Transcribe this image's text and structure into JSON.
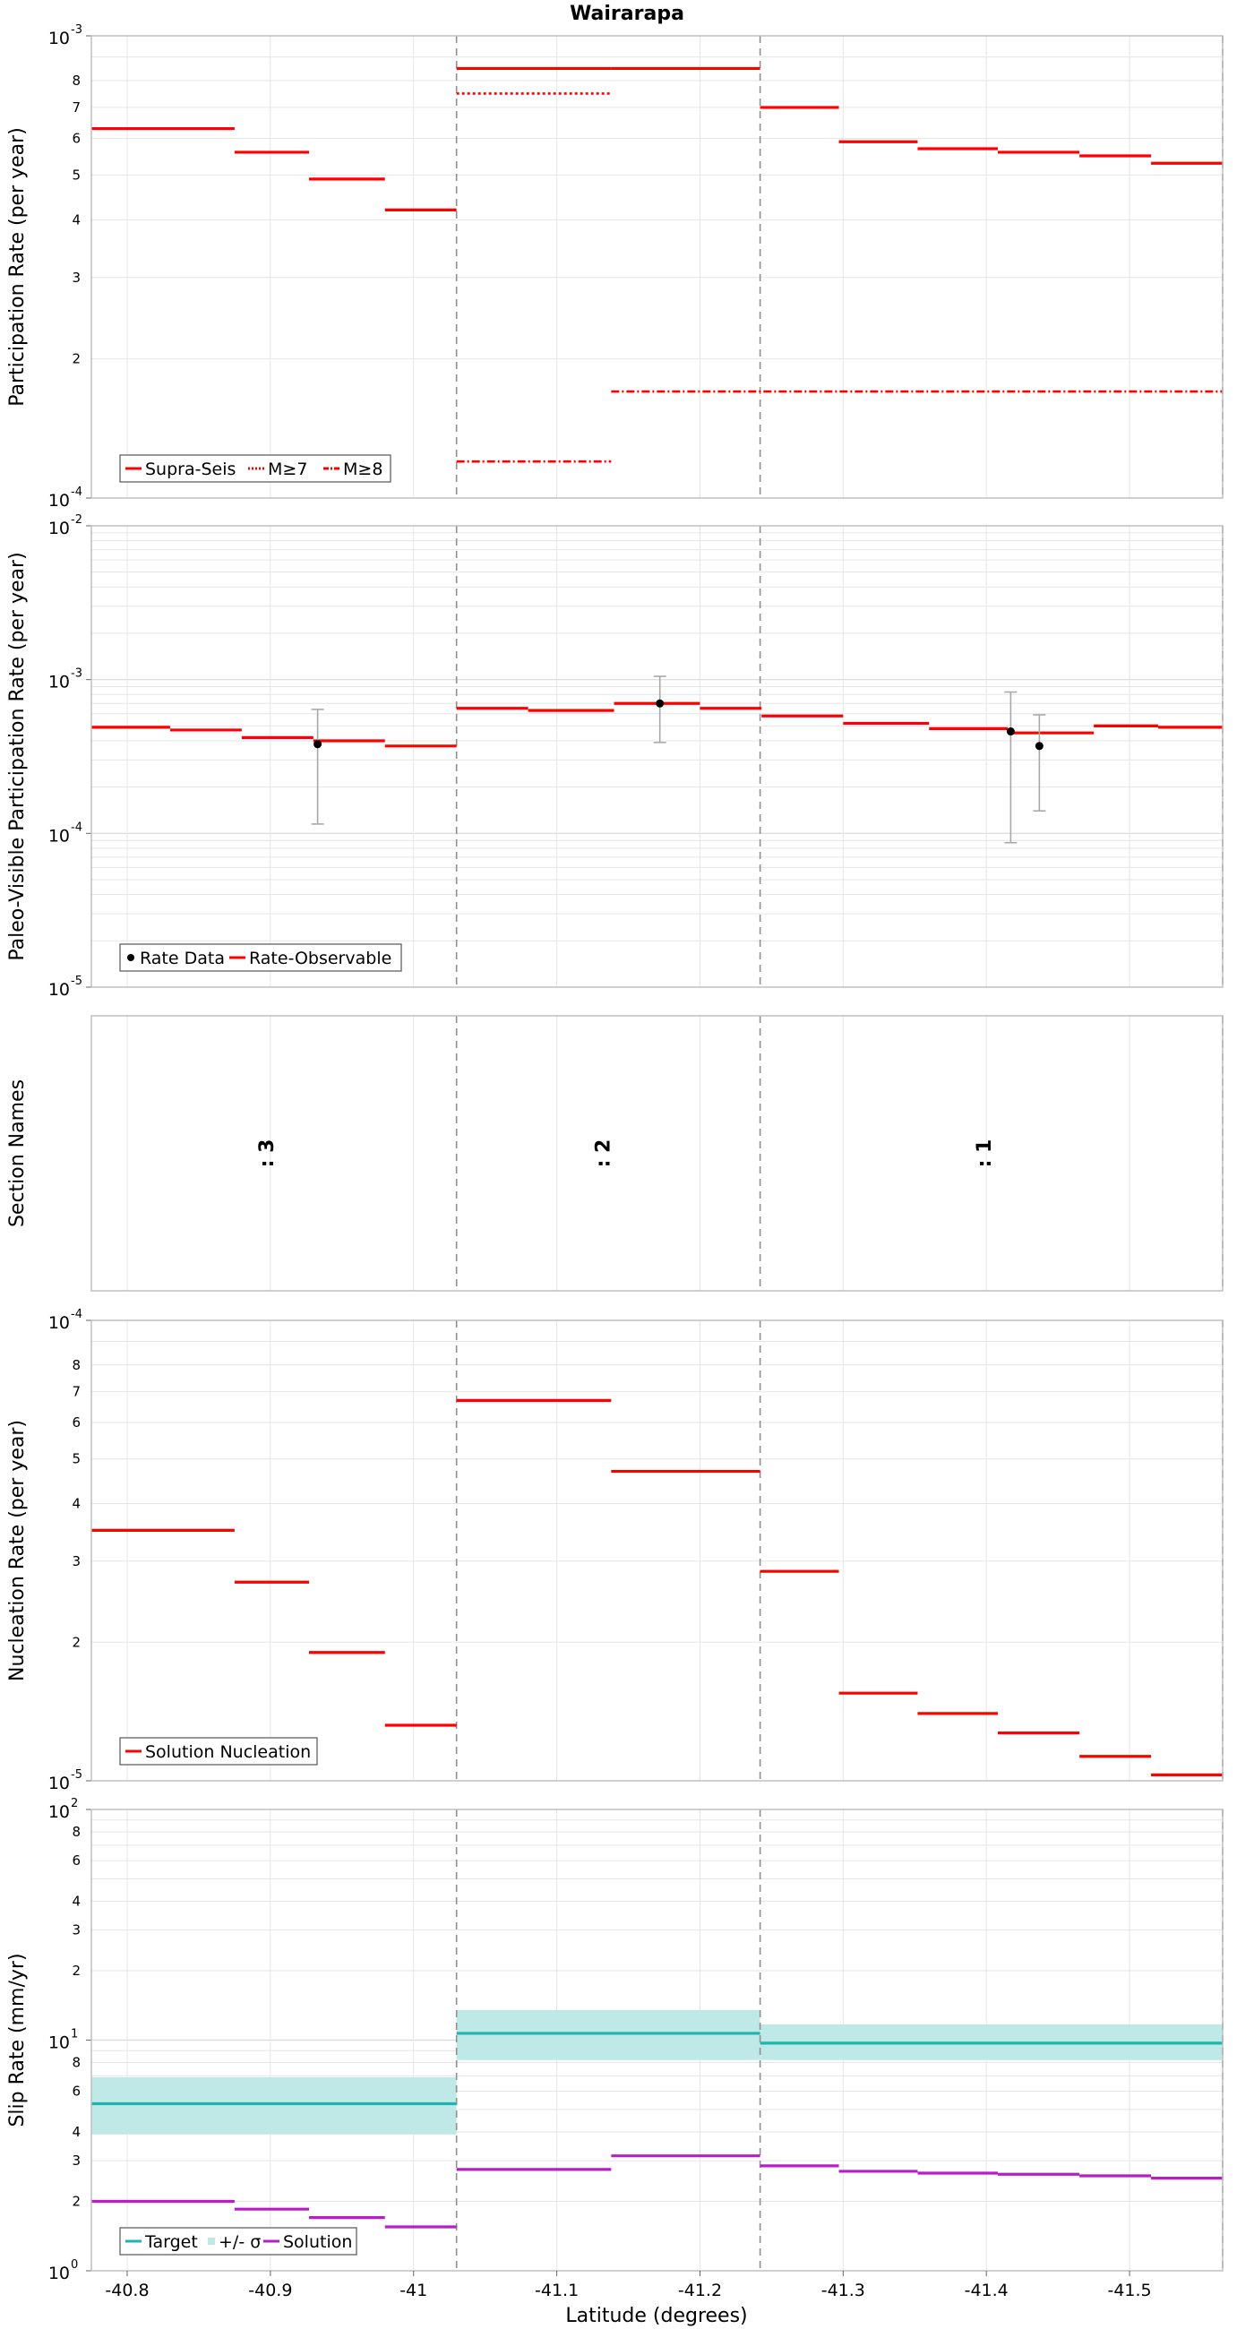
{
  "title": "Wairarapa",
  "xlabel": "Latitude (degrees)",
  "colors": {
    "red": "#ff0000",
    "cyan": "#1fb5ad",
    "band": "#bfe9e7",
    "magenta": "#b51fc4",
    "grid": "#e6e6e6",
    "frame": "#bbbbbb",
    "divider": "#8f8f8f",
    "errbar": "#a8a8a8"
  },
  "chart_data": [
    {
      "id": "participation",
      "type": "line",
      "scale": "log",
      "ylabel": "Participation Rate (per year)",
      "ylim": [
        0.0001,
        0.001
      ],
      "xlim": [
        -40.775,
        -41.565
      ],
      "series": [
        {
          "name": "Supra-Seis",
          "style": "solid",
          "steps": [
            {
              "x0": -40.775,
              "x1": -40.875,
              "y": 0.00063
            },
            {
              "x0": -40.875,
              "x1": -40.927,
              "y": 0.00056
            },
            {
              "x0": -40.927,
              "x1": -40.98,
              "y": 0.00049
            },
            {
              "x0": -40.98,
              "x1": -41.03,
              "y": 0.00042
            },
            {
              "x0": -41.03,
              "x1": -41.138,
              "y": 0.00085
            },
            {
              "x0": -41.138,
              "x1": -41.242,
              "y": 0.00085
            },
            {
              "x0": -41.242,
              "x1": -41.297,
              "y": 0.0007
            },
            {
              "x0": -41.297,
              "x1": -41.352,
              "y": 0.00059
            },
            {
              "x0": -41.352,
              "x1": -41.408,
              "y": 0.00057
            },
            {
              "x0": -41.408,
              "x1": -41.465,
              "y": 0.00056
            },
            {
              "x0": -41.465,
              "x1": -41.515,
              "y": 0.00055
            },
            {
              "x0": -41.515,
              "x1": -41.565,
              "y": 0.00053
            }
          ]
        },
        {
          "name": "M≥7",
          "style": "dotted",
          "steps": [
            {
              "x0": -41.03,
              "x1": -41.138,
              "y": 0.00075
            }
          ]
        },
        {
          "name": "M≥8",
          "style": "dashdot",
          "steps": [
            {
              "x0": -41.03,
              "x1": -41.138,
              "y": 0.00012
            },
            {
              "x0": -41.138,
              "x1": -41.565,
              "y": 0.00017
            }
          ]
        }
      ],
      "legend": [
        "Supra-Seis",
        "M≥7",
        "M≥8"
      ]
    },
    {
      "id": "paleo",
      "type": "line",
      "scale": "log",
      "ylabel": "Paleo-Visible Participation Rate (per year)",
      "ylim": [
        1e-05,
        0.01
      ],
      "xlim": [
        -40.775,
        -41.565
      ],
      "series": [
        {
          "name": "Rate-Observable",
          "style": "solid",
          "steps": [
            {
              "x0": -40.775,
              "x1": -40.83,
              "y": 0.00049
            },
            {
              "x0": -40.83,
              "x1": -40.88,
              "y": 0.00047
            },
            {
              "x0": -40.88,
              "x1": -40.93,
              "y": 0.00042
            },
            {
              "x0": -40.93,
              "x1": -40.98,
              "y": 0.0004
            },
            {
              "x0": -40.98,
              "x1": -41.03,
              "y": 0.00037
            },
            {
              "x0": -41.03,
              "x1": -41.08,
              "y": 0.00065
            },
            {
              "x0": -41.08,
              "x1": -41.14,
              "y": 0.00063
            },
            {
              "x0": -41.14,
              "x1": -41.2,
              "y": 0.0007
            },
            {
              "x0": -41.2,
              "x1": -41.243,
              "y": 0.00065
            },
            {
              "x0": -41.243,
              "x1": -41.3,
              "y": 0.00058
            },
            {
              "x0": -41.3,
              "x1": -41.36,
              "y": 0.00052
            },
            {
              "x0": -41.36,
              "x1": -41.415,
              "y": 0.00048
            },
            {
              "x0": -41.415,
              "x1": -41.475,
              "y": 0.00045
            },
            {
              "x0": -41.475,
              "x1": -41.52,
              "y": 0.0005
            },
            {
              "x0": -41.52,
              "x1": -41.565,
              "y": 0.00049
            }
          ]
        }
      ],
      "points": [
        {
          "name": "Rate Data",
          "x": -40.933,
          "y": 0.00038,
          "lo": 0.000115,
          "hi": 0.00064
        },
        {
          "name": "Rate Data",
          "x": -41.172,
          "y": 0.0007,
          "lo": 0.00039,
          "hi": 0.00105
        },
        {
          "name": "Rate Data",
          "x": -41.417,
          "y": 0.00046,
          "lo": 8.7e-05,
          "hi": 0.00083
        },
        {
          "name": "Rate Data",
          "x": -41.437,
          "y": 0.00037,
          "lo": 0.00014,
          "hi": 0.00059
        }
      ],
      "legend": [
        "Rate Data",
        "Rate-Observable"
      ]
    },
    {
      "id": "sections",
      "type": "table",
      "ylabel": "Section Names",
      "xlim": [
        -40.775,
        -41.565
      ],
      "labels": [
        {
          "text": ": 3",
          "x": -40.902
        },
        {
          "text": ": 2",
          "x": -41.137
        },
        {
          "text": ": 1",
          "x": -41.403
        }
      ]
    },
    {
      "id": "nucleation",
      "type": "line",
      "scale": "log",
      "ylabel": "Nucleation Rate (per year)",
      "ylim": [
        1e-05,
        0.0001
      ],
      "xlim": [
        -40.775,
        -41.565
      ],
      "series": [
        {
          "name": "Solution Nucleation",
          "style": "solid",
          "steps": [
            {
              "x0": -40.775,
              "x1": -40.875,
              "y": 3.5e-05
            },
            {
              "x0": -40.875,
              "x1": -40.927,
              "y": 2.7e-05
            },
            {
              "x0": -40.927,
              "x1": -40.98,
              "y": 1.9e-05
            },
            {
              "x0": -40.98,
              "x1": -41.03,
              "y": 1.32e-05
            },
            {
              "x0": -41.03,
              "x1": -41.138,
              "y": 6.7e-05
            },
            {
              "x0": -41.138,
              "x1": -41.242,
              "y": 4.7e-05
            },
            {
              "x0": -41.242,
              "x1": -41.297,
              "y": 2.85e-05
            },
            {
              "x0": -41.297,
              "x1": -41.352,
              "y": 1.55e-05
            },
            {
              "x0": -41.352,
              "x1": -41.408,
              "y": 1.4e-05
            },
            {
              "x0": -41.408,
              "x1": -41.465,
              "y": 1.27e-05
            },
            {
              "x0": -41.465,
              "x1": -41.515,
              "y": 1.13e-05
            },
            {
              "x0": -41.515,
              "x1": -41.565,
              "y": 1.03e-05
            }
          ]
        }
      ],
      "legend": [
        "Solution Nucleation"
      ]
    },
    {
      "id": "slip",
      "type": "line",
      "scale": "log",
      "ylabel": "Slip Rate (mm/yr)",
      "xlabel": "Latitude (degrees)",
      "ylim": [
        1,
        100
      ],
      "xlim": [
        -40.775,
        -41.565
      ],
      "xticks": [
        -40.8,
        -40.9,
        -41,
        -41.1,
        -41.2,
        -41.3,
        -41.4,
        -41.5
      ],
      "bands": [
        {
          "x0": -40.775,
          "x1": -41.03,
          "lo": 3.9,
          "hi": 6.9
        },
        {
          "x0": -41.03,
          "x1": -41.242,
          "lo": 8.2,
          "hi": 13.5
        },
        {
          "x0": -41.242,
          "x1": -41.565,
          "lo": 8.2,
          "hi": 11.7
        }
      ],
      "series": [
        {
          "name": "Target",
          "style": "solid",
          "steps": [
            {
              "x0": -40.775,
              "x1": -41.03,
              "y": 5.3
            },
            {
              "x0": -41.03,
              "x1": -41.242,
              "y": 10.7
            },
            {
              "x0": -41.242,
              "x1": -41.565,
              "y": 9.7
            }
          ]
        },
        {
          "name": "Solution",
          "style": "solid",
          "steps": [
            {
              "x0": -40.775,
              "x1": -40.875,
              "y": 2.0
            },
            {
              "x0": -40.875,
              "x1": -40.927,
              "y": 1.85
            },
            {
              "x0": -40.927,
              "x1": -40.98,
              "y": 1.7
            },
            {
              "x0": -40.98,
              "x1": -41.03,
              "y": 1.55
            },
            {
              "x0": -41.03,
              "x1": -41.138,
              "y": 2.75
            },
            {
              "x0": -41.138,
              "x1": -41.242,
              "y": 3.15
            },
            {
              "x0": -41.242,
              "x1": -41.297,
              "y": 2.85
            },
            {
              "x0": -41.297,
              "x1": -41.352,
              "y": 2.7
            },
            {
              "x0": -41.352,
              "x1": -41.408,
              "y": 2.65
            },
            {
              "x0": -41.408,
              "x1": -41.465,
              "y": 2.62
            },
            {
              "x0": -41.465,
              "x1": -41.515,
              "y": 2.58
            },
            {
              "x0": -41.515,
              "x1": -41.565,
              "y": 2.52
            }
          ]
        }
      ],
      "legend": [
        "Target",
        "+/- σ",
        "Solution"
      ]
    }
  ],
  "section_dividers": [
    -41.03,
    -41.242,
    -41.565
  ]
}
